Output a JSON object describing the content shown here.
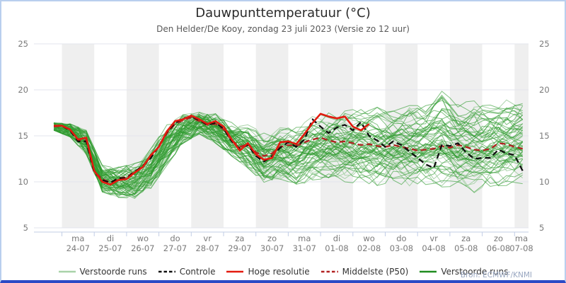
{
  "header": {
    "title": "Dauwpunttemperatuur (°C)",
    "subtitle": "Den Helder/De Kooy, zondag 23 juli 2023 (Versie zo 12 uur)"
  },
  "source": {
    "label": "Bron: ECMWF/KNMI"
  },
  "colors": {
    "band": "#efefef",
    "grid": "#e3e6ec",
    "tick": "#c2cde6",
    "axis_text": "#7a7a7a",
    "light_member": "#a8d2a8",
    "dark_member": "#2e9b2e",
    "dark_member_legend": "#1f8c1f",
    "control": "#101010",
    "hres": "#e31a0f",
    "median": "#b22222",
    "border": "#b9cfee",
    "bottom_bar": "#2b49c5",
    "source_text": "#98a6c0"
  },
  "legend": {
    "items": [
      {
        "label": "Verstoorde runs",
        "swatch": "light_member",
        "style": "solid"
      },
      {
        "label": "Controle",
        "swatch": "control",
        "style": "dashed"
      },
      {
        "label": "Hoge resolutie",
        "swatch": "hres",
        "style": "solid"
      },
      {
        "label": "Middelste (P50)",
        "swatch": "median",
        "style": "dashed"
      },
      {
        "label": "Verstoorde runs",
        "swatch": "dark_member_legend",
        "style": "solid"
      }
    ]
  },
  "chart_data": {
    "type": "line",
    "title": "Dauwpunttemperatuur (°C)",
    "subtitle": "Den Helder/De Kooy, zondag 23 juli 2023 (Versie zo 12 uur)",
    "ylim": [
      5,
      25
    ],
    "yticks": [
      25,
      20,
      15,
      10,
      5
    ],
    "grid": "horizontal-major, alternating day bands",
    "legend_position": "bottom",
    "x_axis": {
      "days": [
        {
          "weekday": "ma",
          "date": "24-07"
        },
        {
          "weekday": "di",
          "date": "25-07"
        },
        {
          "weekday": "wo",
          "date": "26-07"
        },
        {
          "weekday": "do",
          "date": "27-07"
        },
        {
          "weekday": "vr",
          "date": "28-07"
        },
        {
          "weekday": "za",
          "date": "29-07"
        },
        {
          "weekday": "zo",
          "date": "30-07"
        },
        {
          "weekday": "ma",
          "date": "31-07"
        },
        {
          "weekday": "di",
          "date": "01-08"
        },
        {
          "weekday": "wo",
          "date": "02-08"
        },
        {
          "weekday": "do",
          "date": "03-08"
        },
        {
          "weekday": "vr",
          "date": "04-08"
        },
        {
          "weekday": "za",
          "date": "05-08"
        },
        {
          "weekday": "zo",
          "date": "06-08"
        },
        {
          "weekday": "ma",
          "date": "07-08"
        }
      ]
    },
    "time": {
      "start_hour_offset": 18,
      "step_hours": 6,
      "n_points": 59
    },
    "series": [
      {
        "name": "Controle",
        "style": "dashed",
        "color_key": "control",
        "values": [
          16.1,
          16.1,
          15.6,
          14.4,
          14.4,
          11.0,
          10.2,
          9.9,
          10.4,
          10.4,
          11.1,
          11.7,
          12.6,
          13.9,
          15.4,
          16.4,
          16.9,
          17.1,
          16.7,
          16.2,
          16.4,
          15.8,
          14.4,
          13.6,
          14.0,
          12.8,
          12.2,
          12.8,
          13.7,
          14.3,
          13.8,
          14.6,
          16.8,
          16.0,
          15.3,
          15.9,
          16.2,
          15.6,
          16.5,
          15.0,
          14.5,
          13.8,
          14.4,
          14.0,
          13.3,
          12.6,
          11.9,
          11.5,
          14.0,
          13.9,
          14.2,
          13.2,
          12.5,
          12.6,
          12.6,
          13.5,
          13.1,
          12.9,
          11.2
        ]
      },
      {
        "name": "Hoge resolutie",
        "style": "solid",
        "color_key": "hres",
        "values": [
          16.1,
          16.1,
          15.7,
          14.6,
          14.8,
          11.2,
          10.0,
          9.7,
          10.2,
          10.3,
          11.0,
          11.6,
          12.9,
          13.8,
          15.5,
          16.6,
          16.8,
          17.2,
          16.8,
          16.3,
          16.6,
          16.0,
          14.6,
          13.4,
          14.2,
          13.0,
          12.4,
          12.6,
          14.3,
          14.4,
          14.1,
          15.2,
          16.4,
          17.4,
          17.1,
          16.9,
          17.1,
          16.0,
          15.6,
          16.3
        ]
      },
      {
        "name": "Middelste (P50)",
        "style": "dashed",
        "color_key": "median",
        "values": [
          16.0,
          16.1,
          15.6,
          14.5,
          14.5,
          11.1,
          10.3,
          9.9,
          10.4,
          10.5,
          11.1,
          11.7,
          12.7,
          13.8,
          15.3,
          16.3,
          16.7,
          17.0,
          16.6,
          16.2,
          16.3,
          15.7,
          14.5,
          13.8,
          14.1,
          13.2,
          12.8,
          13.1,
          13.8,
          14.0,
          13.9,
          14.3,
          14.6,
          14.8,
          14.5,
          14.3,
          14.4,
          14.2,
          14.0,
          14.1,
          13.9,
          13.8,
          14.0,
          13.8,
          13.6,
          13.4,
          13.5,
          13.6,
          13.9,
          13.7,
          14.0,
          13.8,
          13.5,
          13.4,
          13.6,
          14.2,
          14.1,
          13.8,
          13.6
        ]
      }
    ],
    "ensemble": {
      "name": "Verstoorde runs",
      "count_light": 22,
      "count_dark": 48,
      "envelope_step_hours": 12,
      "envelope_min": [
        15.6,
        14.9,
        13.0,
        8.9,
        8.3,
        8.2,
        9.3,
        11.8,
        14.2,
        15.2,
        14.2,
        12.8,
        11.5,
        9.8,
        10.3,
        9.5,
        10.2,
        10.4,
        10.0,
        9.8,
        9.6,
        9.8,
        9.5,
        9.7,
        9.2,
        9.0,
        8.8,
        9.2,
        9.6,
        9.8
      ],
      "envelope_max": [
        16.4,
        16.3,
        15.6,
        11.8,
        11.6,
        12.0,
        13.6,
        16.2,
        17.3,
        17.6,
        17.4,
        16.5,
        16.2,
        15.3,
        15.9,
        16.4,
        17.1,
        17.5,
        17.7,
        18.0,
        18.1,
        18.0,
        18.3,
        18.7,
        20.3,
        18.6,
        18.8,
        19.0,
        18.9,
        19.2
      ]
    }
  }
}
